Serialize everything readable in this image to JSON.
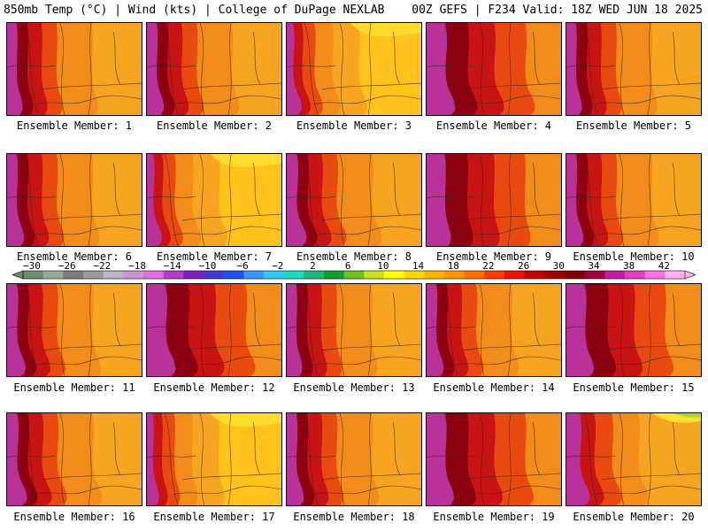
{
  "header": {
    "left": "850mb Temp (°C) | Wind (kts) | College of DuPage NEXLAB",
    "right": "00Z GEFS | F234 Valid: 18Z WED JUN 18 2025"
  },
  "members": [
    {
      "label": "Ensemble Member: 1",
      "style": "hot-west"
    },
    {
      "label": "Ensemble Member: 2",
      "style": "hot-west"
    },
    {
      "label": "Ensemble Member: 3",
      "style": "warm-yellow"
    },
    {
      "label": "Ensemble Member: 4",
      "style": "hot-broad"
    },
    {
      "label": "Ensemble Member: 5",
      "style": "hot-west"
    },
    {
      "label": "Ensemble Member: 6",
      "style": "hot-west"
    },
    {
      "label": "Ensemble Member: 7",
      "style": "warm-yellow"
    },
    {
      "label": "Ensemble Member: 8",
      "style": "hot-west"
    },
    {
      "label": "Ensemble Member: 9",
      "style": "hot-broad"
    },
    {
      "label": "Ensemble Member: 10",
      "style": "hot-west"
    },
    {
      "label": "Ensemble Member: 11",
      "style": "hot-west"
    },
    {
      "label": "Ensemble Member: 12",
      "style": "hot-broad"
    },
    {
      "label": "Ensemble Member: 13",
      "style": "hot-west"
    },
    {
      "label": "Ensemble Member: 14",
      "style": "hot-west"
    },
    {
      "label": "Ensemble Member: 15",
      "style": "hot-broad"
    },
    {
      "label": "Ensemble Member: 16",
      "style": "hot-west"
    },
    {
      "label": "Ensemble Member: 17",
      "style": "warm-yellow"
    },
    {
      "label": "Ensemble Member: 18",
      "style": "hot-west"
    },
    {
      "label": "Ensemble Member: 19",
      "style": "hot-broad"
    },
    {
      "label": "Ensemble Member: 20",
      "style": "cool-east"
    }
  ],
  "colorbar": {
    "ticks": [
      "-30",
      "-26",
      "-22",
      "-18",
      "-14",
      "-10",
      "-6",
      "-2",
      "2",
      "6",
      "10",
      "14",
      "18",
      "22",
      "26",
      "30",
      "34",
      "38",
      "42"
    ],
    "colors": [
      "#6e8c6e",
      "#9aaa9a",
      "#7a7a7a",
      "#9a9a9a",
      "#b8b8c8",
      "#c896d8",
      "#e070e0",
      "#b040c8",
      "#8020c0",
      "#3c3cd0",
      "#2050f0",
      "#3c96ff",
      "#30c8f0",
      "#20d8c0",
      "#20b878",
      "#10a030",
      "#70c020",
      "#c8e020",
      "#ffff00",
      "#ffd800",
      "#ffb400",
      "#ff9600",
      "#ff6e00",
      "#ff3c00",
      "#f01000",
      "#c80000",
      "#a00000",
      "#800000",
      "#a00040",
      "#c020a0",
      "#e040c0",
      "#ff70e8",
      "#ffb0f0"
    ]
  },
  "palette": {
    "magenta": "#b8329a",
    "deep_red": "#8c0010",
    "red": "#c81414",
    "red_orange": "#e84a10",
    "orange": "#f28c1a",
    "light_orange": "#f7a520",
    "yellow_orange": "#ffc21a",
    "yellow": "#ffe030",
    "green": "#a8d830",
    "contour": "#3a2a1a"
  }
}
